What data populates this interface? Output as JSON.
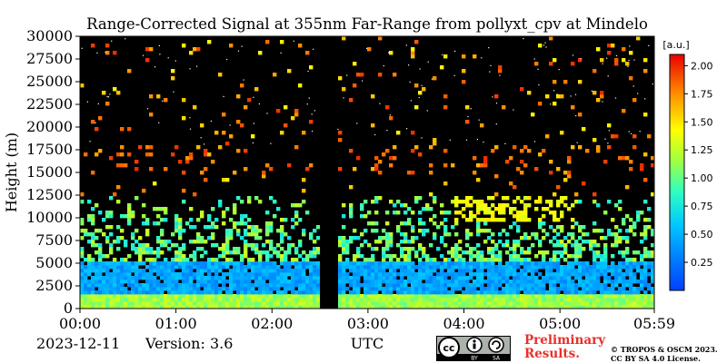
{
  "chart_data": {
    "type": "heatmap",
    "title": "Range-Corrected Signal at 355nm Far-Range from pollyxt_cpv at Mindelo",
    "ylabel": "Height (m)",
    "xlabel": "UTC",
    "x_ticks": [
      "00:00",
      "01:00",
      "02:00",
      "03:00",
      "04:00",
      "05:00",
      "05:59"
    ],
    "x_tick_hours": [
      0,
      1,
      2,
      3,
      4,
      5,
      5.983
    ],
    "xlim_hours": [
      0,
      5.983
    ],
    "y_ticks": [
      0,
      2500,
      5000,
      7500,
      10000,
      12500,
      15000,
      17500,
      20000,
      22500,
      25000,
      27500,
      30000
    ],
    "ylim": [
      0,
      30000
    ],
    "colorbar": {
      "unit": "[a.u.]",
      "ticks": [
        0.25,
        0.5,
        0.75,
        1.0,
        1.25,
        1.5,
        1.75,
        2.0
      ],
      "tick_labels": [
        "0.25",
        "0.50",
        "0.75",
        "1.00",
        "1.25",
        "1.50",
        "1.75",
        "2.00"
      ],
      "range": [
        0,
        2.1
      ],
      "colormap": "jet"
    },
    "features": [
      {
        "type": "near-surface high signal",
        "height_range": [
          0,
          1500
        ],
        "value_range": [
          1.0,
          1.3
        ]
      },
      {
        "type": "boundary layer aerosol",
        "height_range": [
          1500,
          5000
        ],
        "value_range": [
          0.3,
          0.6
        ]
      },
      {
        "type": "data gap",
        "time_range_hours": [
          2.5,
          2.67
        ]
      },
      {
        "type": "cirrus cloud",
        "time_range_hours": [
          3.9,
          5.2
        ],
        "height_range": [
          9500,
          12500
        ],
        "value_range": [
          1.3,
          1.5
        ]
      },
      {
        "type": "sparse cloud",
        "time_range_hours": [
          0.5,
          0.9
        ],
        "height_range": [
          10000,
          11500
        ],
        "value_range": [
          1.1,
          1.3
        ]
      },
      {
        "type": "noise at high altitude",
        "height_range": [
          15000,
          18000
        ],
        "value_range": [
          1.6,
          2.0
        ]
      }
    ]
  },
  "footer": {
    "date": "2023-12-11",
    "version": "Version: 3.6",
    "preliminary": "Preliminary Results.",
    "copyright": "© TROPOS & OSCM 2023. CC BY SA 4.0 License.",
    "license_badge": "cc-by-sa-icon"
  },
  "colors": {
    "background": "#000000",
    "annotation_red": "#e8302a"
  }
}
